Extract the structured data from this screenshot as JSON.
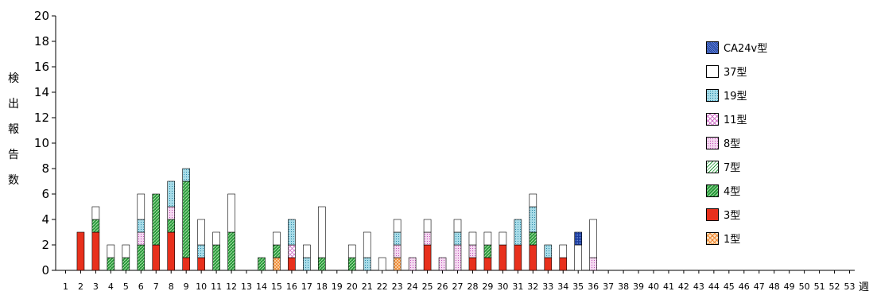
{
  "chart_data": {
    "type": "bar",
    "stacked": true,
    "ylabel": "検出報告数",
    "xlabel": "週",
    "ylim": [
      0,
      20
    ],
    "yticks": [
      0,
      2,
      4,
      6,
      8,
      10,
      12,
      14,
      16,
      18,
      20
    ],
    "categories": [
      "1",
      "2",
      "3",
      "4",
      "5",
      "6",
      "7",
      "8",
      "9",
      "10",
      "11",
      "12",
      "13",
      "14",
      "15",
      "16",
      "17",
      "18",
      "19",
      "20",
      "21",
      "22",
      "23",
      "24",
      "25",
      "26",
      "27",
      "28",
      "29",
      "30",
      "31",
      "32",
      "33",
      "34",
      "35",
      "36",
      "37",
      "38",
      "39",
      "40",
      "41",
      "42",
      "43",
      "44",
      "45",
      "46",
      "47",
      "48",
      "49",
      "50",
      "51",
      "52",
      "53"
    ],
    "legend_position": "right",
    "series": [
      {
        "name": "1型",
        "color": "#f5a050",
        "pattern": "cross",
        "values": [
          0,
          0,
          0,
          0,
          0,
          0,
          0,
          0,
          0,
          0,
          0,
          0,
          0,
          0,
          1,
          0,
          0,
          0,
          0,
          0,
          0,
          0,
          1,
          0,
          0,
          0,
          0,
          0,
          0,
          0,
          0,
          0,
          0,
          0,
          0,
          0,
          0,
          0,
          0,
          0,
          0,
          0,
          0,
          0,
          0,
          0,
          0,
          0,
          0,
          0,
          0,
          0,
          0
        ]
      },
      {
        "name": "3型",
        "color": "#e8301c",
        "pattern": "solid",
        "values": [
          0,
          3,
          3,
          0,
          0,
          0,
          2,
          3,
          1,
          1,
          0,
          0,
          0,
          0,
          0,
          1,
          0,
          0,
          0,
          0,
          0,
          0,
          0,
          0,
          2,
          0,
          0,
          1,
          1,
          2,
          2,
          2,
          1,
          1,
          0,
          0,
          0,
          0,
          0,
          0,
          0,
          0,
          0,
          0,
          0,
          0,
          0,
          0,
          0,
          0,
          0,
          0,
          0
        ]
      },
      {
        "name": "4型",
        "color": "#2a9a3c",
        "pattern": "diag",
        "values": [
          0,
          0,
          1,
          1,
          1,
          2,
          4,
          1,
          6,
          0,
          2,
          3,
          0,
          1,
          1,
          0,
          0,
          1,
          0,
          1,
          0,
          0,
          0,
          0,
          0,
          0,
          0,
          0,
          1,
          0,
          0,
          1,
          0,
          0,
          0,
          0,
          0,
          0,
          0,
          0,
          0,
          0,
          0,
          0,
          0,
          0,
          0,
          0,
          0,
          0,
          0,
          0,
          0
        ]
      },
      {
        "name": "7型",
        "color": "#2a9a3c",
        "pattern": "diag-light",
        "values": [
          0,
          0,
          0,
          0,
          0,
          0,
          0,
          0,
          0,
          0,
          0,
          0,
          0,
          0,
          0,
          0,
          0,
          0,
          0,
          0,
          0,
          0,
          0,
          0,
          0,
          0,
          0,
          0,
          0,
          0,
          0,
          0,
          0,
          0,
          0,
          0,
          0,
          0,
          0,
          0,
          0,
          0,
          0,
          0,
          0,
          0,
          0,
          0,
          0,
          0,
          0,
          0,
          0
        ]
      },
      {
        "name": "8型",
        "color": "#d070c8",
        "pattern": "dots",
        "values": [
          0,
          0,
          0,
          0,
          0,
          1,
          0,
          1,
          0,
          0,
          0,
          0,
          0,
          0,
          0,
          0,
          0,
          0,
          0,
          0,
          0,
          0,
          1,
          1,
          1,
          1,
          2,
          1,
          0,
          0,
          0,
          0,
          0,
          0,
          0,
          1,
          0,
          0,
          0,
          0,
          0,
          0,
          0,
          0,
          0,
          0,
          0,
          0,
          0,
          0,
          0,
          0,
          0
        ]
      },
      {
        "name": "11型",
        "color": "#d070c8",
        "pattern": "cross",
        "values": [
          0,
          0,
          0,
          0,
          0,
          0,
          0,
          0,
          0,
          0,
          0,
          0,
          0,
          0,
          0,
          1,
          0,
          0,
          0,
          0,
          0,
          0,
          0,
          0,
          0,
          0,
          0,
          0,
          0,
          0,
          0,
          0,
          0,
          0,
          0,
          0,
          0,
          0,
          0,
          0,
          0,
          0,
          0,
          0,
          0,
          0,
          0,
          0,
          0,
          0,
          0,
          0,
          0
        ]
      },
      {
        "name": "19型",
        "color": "#40a8c0",
        "pattern": "dots",
        "values": [
          0,
          0,
          0,
          0,
          0,
          1,
          0,
          2,
          1,
          1,
          0,
          0,
          0,
          0,
          0,
          2,
          1,
          0,
          0,
          0,
          1,
          0,
          1,
          0,
          0,
          0,
          1,
          0,
          0,
          0,
          2,
          2,
          1,
          0,
          0,
          0,
          0,
          0,
          0,
          0,
          0,
          0,
          0,
          0,
          0,
          0,
          0,
          0,
          0,
          0,
          0,
          0,
          0
        ]
      },
      {
        "name": "37型",
        "color": "#ffffff",
        "pattern": "white",
        "values": [
          0,
          0,
          1,
          1,
          1,
          2,
          0,
          0,
          0,
          2,
          1,
          3,
          0,
          0,
          1,
          0,
          1,
          4,
          0,
          1,
          2,
          1,
          1,
          0,
          1,
          0,
          1,
          1,
          1,
          1,
          0,
          1,
          0,
          1,
          2,
          3,
          0,
          0,
          0,
          0,
          0,
          0,
          0,
          0,
          0,
          0,
          0,
          0,
          0,
          0,
          0,
          0,
          0
        ]
      },
      {
        "name": "CA24v型",
        "color": "#1a3a9a",
        "pattern": "dense-dots",
        "values": [
          0,
          0,
          0,
          0,
          0,
          0,
          0,
          0,
          0,
          0,
          0,
          0,
          0,
          0,
          0,
          0,
          0,
          0,
          0,
          0,
          0,
          0,
          0,
          0,
          0,
          0,
          0,
          0,
          0,
          0,
          0,
          0,
          0,
          0,
          1,
          0,
          0,
          0,
          0,
          0,
          0,
          0,
          0,
          0,
          0,
          0,
          0,
          0,
          0,
          0,
          0,
          0,
          0
        ]
      }
    ]
  },
  "legend": {
    "items": [
      "CA24v型",
      "37型",
      "19型",
      "11型",
      "8型",
      "7型",
      "4型",
      "3型",
      "1型"
    ]
  }
}
